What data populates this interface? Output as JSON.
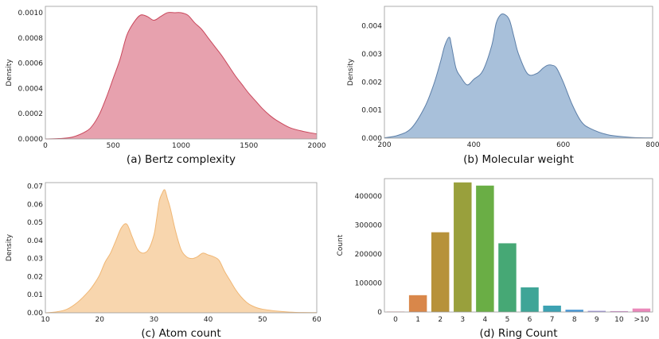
{
  "chart_data": [
    {
      "type": "area",
      "caption": "(a) Bertz complexity",
      "ylabel": "Density",
      "xlim": [
        0,
        2000
      ],
      "ylim": [
        0,
        0.00105
      ],
      "xticks": [
        "0",
        "500",
        "1000",
        "1500",
        "2000"
      ],
      "yticks": [
        "0.0000",
        "0.0002",
        "0.0004",
        "0.0006",
        "0.0008",
        "0.0010"
      ],
      "fill": "#e7a1ae",
      "stroke": "#c9485c",
      "x": [
        0,
        100,
        200,
        300,
        350,
        400,
        450,
        500,
        550,
        600,
        650,
        700,
        750,
        800,
        850,
        900,
        950,
        1000,
        1050,
        1100,
        1150,
        1200,
        1250,
        1300,
        1350,
        1400,
        1450,
        1500,
        1550,
        1600,
        1650,
        1700,
        1800,
        1900,
        2000
      ],
      "y": [
        0,
        3e-06,
        1.5e-05,
        6e-05,
        0.00011,
        0.0002,
        0.00033,
        0.00048,
        0.00063,
        0.00082,
        0.00092,
        0.00098,
        0.00097,
        0.00094,
        0.00097,
        0.001,
        0.001,
        0.001,
        0.00098,
        0.00092,
        0.00087,
        0.0008,
        0.00073,
        0.00066,
        0.00058,
        0.0005,
        0.00043,
        0.00036,
        0.0003,
        0.00024,
        0.00019,
        0.00015,
        9e-05,
        6e-05,
        4e-05
      ]
    },
    {
      "type": "area",
      "caption": "(b) Molecular weight",
      "ylabel": "Density",
      "xlim": [
        200,
        800
      ],
      "ylim": [
        0,
        0.0047
      ],
      "xticks": [
        "200",
        "400",
        "600",
        "800"
      ],
      "yticks": [
        "0.000",
        "0.001",
        "0.002",
        "0.003",
        "0.004"
      ],
      "fill": "#a8c0da",
      "stroke": "#5d7fa8",
      "x": [
        200,
        230,
        260,
        290,
        310,
        325,
        335,
        345,
        350,
        360,
        370,
        385,
        400,
        420,
        440,
        450,
        460,
        470,
        480,
        490,
        500,
        520,
        540,
        555,
        565,
        575,
        585,
        600,
        620,
        640,
        660,
        700,
        750,
        800
      ],
      "y": [
        1e-05,
        0.0001,
        0.00035,
        0.0011,
        0.0019,
        0.0027,
        0.0033,
        0.0036,
        0.0033,
        0.0025,
        0.0022,
        0.0019,
        0.0021,
        0.0024,
        0.0033,
        0.0041,
        0.0044,
        0.0044,
        0.0042,
        0.0036,
        0.003,
        0.0023,
        0.0023,
        0.0025,
        0.0026,
        0.0026,
        0.0025,
        0.002,
        0.0012,
        0.0006,
        0.00035,
        0.00012,
        3e-05,
        1e-05
      ]
    },
    {
      "type": "area",
      "caption": "(c) Atom count",
      "ylabel": "Density",
      "xlim": [
        10,
        60
      ],
      "ylim": [
        0,
        0.072
      ],
      "xticks": [
        "10",
        "20",
        "30",
        "40",
        "50",
        "60"
      ],
      "yticks": [
        "0.00",
        "0.01",
        "0.02",
        "0.03",
        "0.04",
        "0.05",
        "0.06",
        "0.07"
      ],
      "fill": "#f8d6ae",
      "stroke": "#f0b775",
      "x": [
        10,
        12,
        14,
        16,
        18,
        19,
        20,
        21,
        22,
        23,
        24,
        25,
        26,
        27,
        28,
        29,
        30,
        30.5,
        31,
        31.5,
        32,
        32.5,
        33,
        34,
        35,
        36,
        37,
        38,
        39,
        40,
        41,
        42,
        43,
        44,
        45,
        46,
        47,
        48,
        50,
        55,
        60
      ],
      "y": [
        0,
        0.0005,
        0.002,
        0.006,
        0.012,
        0.016,
        0.021,
        0.028,
        0.033,
        0.04,
        0.047,
        0.049,
        0.042,
        0.035,
        0.033,
        0.035,
        0.043,
        0.052,
        0.062,
        0.066,
        0.068,
        0.063,
        0.058,
        0.045,
        0.035,
        0.031,
        0.03,
        0.031,
        0.033,
        0.032,
        0.031,
        0.029,
        0.023,
        0.018,
        0.013,
        0.009,
        0.006,
        0.004,
        0.002,
        0.0004,
        0.0001
      ]
    },
    {
      "type": "bar",
      "caption": "(d) Ring Count",
      "ylabel": "Count",
      "ylim": [
        0,
        460000
      ],
      "yticks": [
        "0",
        "100000",
        "200000",
        "300000",
        "400000"
      ],
      "categories": [
        "0",
        "1",
        "2",
        "3",
        "4",
        "5",
        "6",
        "7",
        "8",
        "9",
        "10",
        ">10"
      ],
      "values": [
        1500,
        58000,
        275000,
        447000,
        436000,
        237000,
        85000,
        22000,
        8000,
        4000,
        3000,
        12000
      ],
      "colors": [
        "#f08080",
        "#d9874a",
        "#b7923a",
        "#99a03c",
        "#6aae45",
        "#46a875",
        "#3fa597",
        "#3da2b2",
        "#4f9bd4",
        "#9f93d6",
        "#d088c8",
        "#ea88ba"
      ]
    }
  ]
}
